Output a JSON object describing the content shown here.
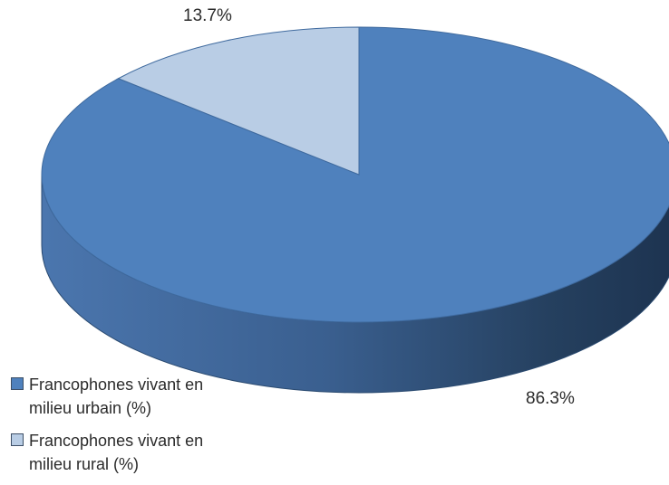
{
  "chart_data": {
    "type": "pie",
    "title": "",
    "categories": [
      "Francophones vivant en milieu urbain (%)",
      "Francophones vivant en milieu rural (%)"
    ],
    "values": [
      86.3,
      13.7
    ],
    "labels": [
      "86.3%",
      "13.7%"
    ],
    "colors": [
      "#4f81bd",
      "#b9cde5"
    ],
    "three_d": true,
    "legend_position": "bottom-left"
  }
}
